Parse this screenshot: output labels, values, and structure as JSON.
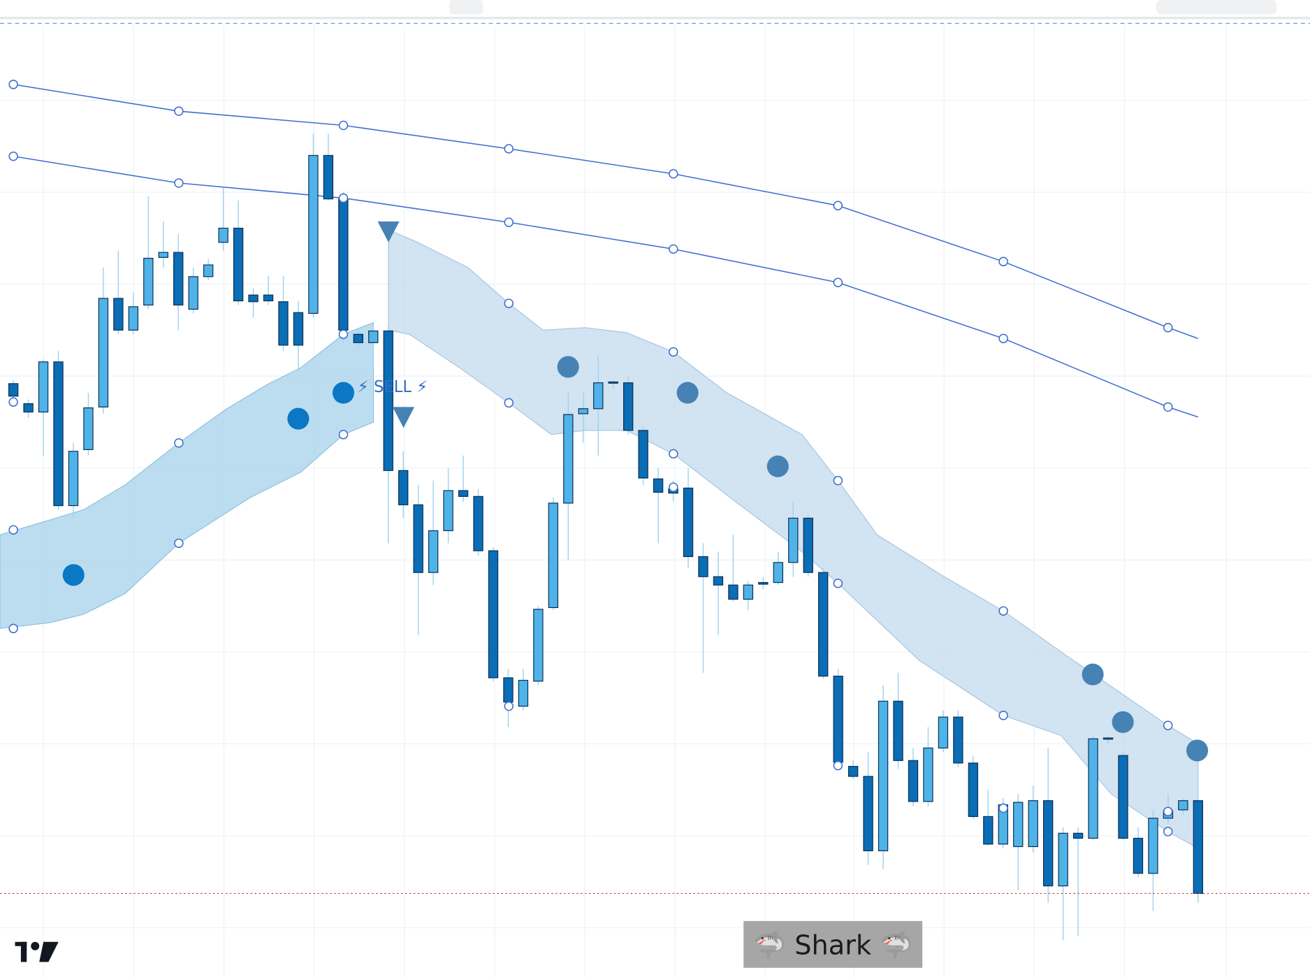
{
  "chart_data": {
    "type": "candlestick",
    "open": [
      71.1,
      68.7,
      67.7,
      73.7,
      56.5,
      63.2,
      68.3,
      81.3,
      77.5,
      80.5,
      86.2,
      86.8,
      80.0,
      83.9,
      88.0,
      89.7,
      81.7,
      81.7,
      80.9,
      79.6,
      79.5,
      98.4,
      93.2,
      77.0,
      76.0,
      77.4,
      60.7,
      56.6,
      48.5,
      53.5,
      58.3,
      57.6,
      51.1,
      35.9,
      32.5,
      35.5,
      44.3,
      56.8,
      67.5,
      68.1,
      71.3,
      71.2,
      65.5,
      59.7,
      58.5,
      58.6,
      50.4,
      48.0,
      47.0,
      45.3,
      47.3,
      47.3,
      49.7,
      55.0,
      48.5,
      36.1,
      25.3,
      24.1,
      15.2,
      33.1,
      26.0,
      21.1,
      27.5,
      31.2,
      25.7,
      19.3,
      16.0,
      15.7,
      15.7,
      21.2,
      11.0,
      17.3,
      16.7,
      28.7,
      26.6,
      16.7,
      12.5,
      19.1,
      20.1,
      21.2
    ],
    "high": [
      71.5,
      69.2,
      74.0,
      75.0,
      64.0,
      70.0,
      85.0,
      87.0,
      82.0,
      93.5,
      90.5,
      89.0,
      85.0,
      86.0,
      94.5,
      93.0,
      82.5,
      84.0,
      84.0,
      81.0,
      101.0,
      101.0,
      94.0,
      77.5,
      78.0,
      78.0,
      63.0,
      59.0,
      59.5,
      61.0,
      62.5,
      58.5,
      51.5,
      37.0,
      37.0,
      44.5,
      57.5,
      70.0,
      70.0,
      74.5,
      71.5,
      72.0,
      66.0,
      61.0,
      59.5,
      61.0,
      52.0,
      51.0,
      53.0,
      47.5,
      48.0,
      51.0,
      57.0,
      55.5,
      49.0,
      37.0,
      26.0,
      27.0,
      35.0,
      36.5,
      27.5,
      30.0,
      32.0,
      32.0,
      26.5,
      22.5,
      21.5,
      22.0,
      23.0,
      27.5,
      18.0,
      18.0,
      29.0,
      29.0,
      27.0,
      18.0,
      20.0,
      22.0,
      21.5,
      21.5
    ],
    "low": [
      69.0,
      67.0,
      62.5,
      56.0,
      55.0,
      62.5,
      67.5,
      77.0,
      77.0,
      80.0,
      85.0,
      77.5,
      79.5,
      83.5,
      87.0,
      80.5,
      79.0,
      80.5,
      75.0,
      72.5,
      79.0,
      93.0,
      76.0,
      75.5,
      73.0,
      52.0,
      55.0,
      41.0,
      47.0,
      52.0,
      57.0,
      50.5,
      35.5,
      30.0,
      32.0,
      35.0,
      44.0,
      50.0,
      64.0,
      62.5,
      70.5,
      65.0,
      59.0,
      52.0,
      57.0,
      49.0,
      36.5,
      41.0,
      45.0,
      44.0,
      46.5,
      47.0,
      48.0,
      48.0,
      35.8,
      25.0,
      23.8,
      13.5,
      13.0,
      25.0,
      20.5,
      20.5,
      27.0,
      25.2,
      19.0,
      15.8,
      15.5,
      10.5,
      15.0,
      9.0,
      4.5,
      5.0,
      16.5,
      28.0,
      16.5,
      12.0,
      8.0,
      18.5,
      19.5,
      9.0
    ],
    "close": [
      69.6,
      67.7,
      73.7,
      56.5,
      63.0,
      68.2,
      81.3,
      77.5,
      80.3,
      86.1,
      86.8,
      80.5,
      83.9,
      85.3,
      89.7,
      81.0,
      80.9,
      81.0,
      75.7,
      75.7,
      98.4,
      93.2,
      77.5,
      76.0,
      77.4,
      60.7,
      56.6,
      48.5,
      53.5,
      58.3,
      57.6,
      51.1,
      35.9,
      33.0,
      35.6,
      44.1,
      56.8,
      67.4,
      68.1,
      71.2,
      71.2,
      65.5,
      59.8,
      58.1,
      58.0,
      50.4,
      48.0,
      47.0,
      45.3,
      47.0,
      47.1,
      49.7,
      55.0,
      48.5,
      36.1,
      25.8,
      24.1,
      15.2,
      33.1,
      26.0,
      21.1,
      27.5,
      31.2,
      25.7,
      19.3,
      16.0,
      20.7,
      21.0,
      21.2,
      11.0,
      17.3,
      16.7,
      28.6,
      28.6,
      16.7,
      12.5,
      19.1,
      20.0,
      21.2,
      10.1
    ],
    "ylim": [
      0,
      117
    ],
    "up_color": "#4fb3e8",
    "down_color": "#0a6db5",
    "wick_color": "#9fd3f0",
    "annotations": [
      "⚡ SELL ⚡",
      "🦈 Shark 🦈"
    ]
  }
}
